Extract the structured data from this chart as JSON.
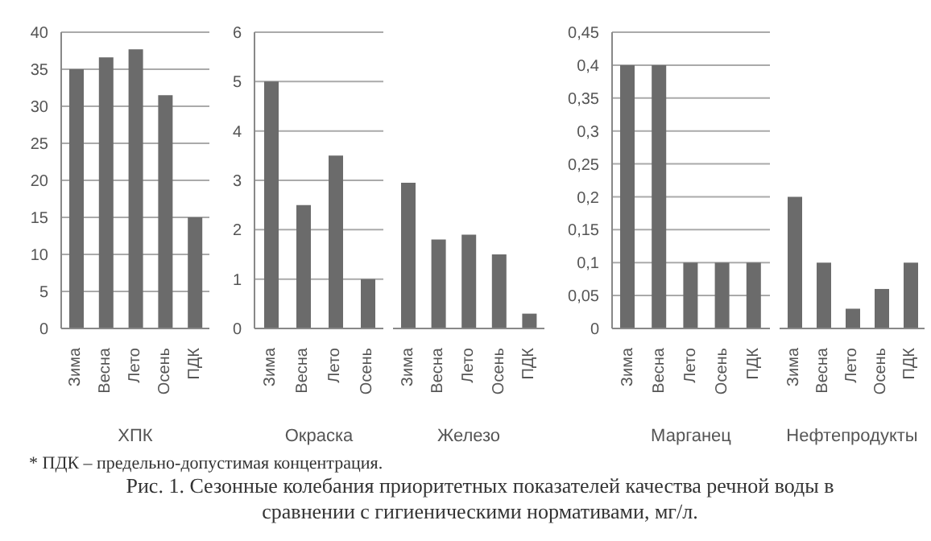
{
  "chart_data": [
    {
      "type": "bar",
      "title": "Рис. 1. Сезонные колебания приоритетных показателей качества речной воды в сравнении с гигиеническими нормативами, мг/л.",
      "annotations": [
        "* ПДК – предельно-допустимая концентрация."
      ],
      "xlabel": "ХПК",
      "categories": [
        "Зима",
        "Весна",
        "Лето",
        "Осень",
        "ПДК"
      ],
      "values": [
        35,
        36.6,
        37.7,
        31.5,
        15
      ],
      "color": "#6b6b6b",
      "ylim": [
        0,
        40
      ],
      "yticks": [
        0,
        5,
        10,
        15,
        20,
        25,
        30,
        35,
        40
      ],
      "grid": "y",
      "legend": false
    },
    {
      "type": "bar",
      "xlabel": "Окраска",
      "categories": [
        "Зима",
        "Весна",
        "Лето",
        "Осень"
      ],
      "values": [
        5,
        2.5,
        3.5,
        1
      ],
      "color": "#6b6b6b",
      "ylim": [
        0,
        6
      ],
      "yticks": [
        0,
        1,
        2,
        3,
        4,
        5,
        6
      ],
      "grid": "y",
      "legend": false
    },
    {
      "type": "bar",
      "xlabel": "Железо",
      "categories": [
        "Зима",
        "Весна",
        "Лето",
        "Осень",
        "ПДК"
      ],
      "values": [
        2.95,
        1.8,
        1.9,
        1.5,
        0.3
      ],
      "color": "#6b6b6b",
      "ylim": [
        0,
        6
      ],
      "yticks": [
        0,
        1,
        2,
        3,
        4,
        5,
        6
      ],
      "grid": "y",
      "legend": false,
      "tick_labels": "x"
    },
    {
      "type": "bar",
      "xlabel": "Марганец",
      "categories": [
        "Зима",
        "Весна",
        "Лето",
        "Осень",
        "ПДК"
      ],
      "values": [
        0.4,
        0.4,
        0.1,
        0.1,
        0.1
      ],
      "color": "#6b6b6b",
      "ylim": [
        0,
        0.45
      ],
      "yticks": [
        0,
        {
          "value": 0.05,
          "label": "0,05"
        },
        {
          "value": 0.1,
          "label": "0,1"
        },
        {
          "value": 0.15,
          "label": "0,15"
        },
        {
          "value": 0.2,
          "label": "0,2"
        },
        {
          "value": 0.25,
          "label": "0,25"
        },
        {
          "value": 0.3,
          "label": "0,3"
        },
        {
          "value": 0.35,
          "label": "0,35"
        },
        {
          "value": 0.4,
          "label": "0,4"
        },
        {
          "value": 0.45,
          "label": "0,45"
        }
      ],
      "grid": "y",
      "legend": false
    },
    {
      "type": "bar",
      "xlabel": "Нефтепродукты",
      "categories": [
        "Зима",
        "Весна",
        "Лето",
        "Осень",
        "ПДК"
      ],
      "values": [
        0.2,
        0.1,
        0.03,
        0.06,
        0.1
      ],
      "color": "#6b6b6b",
      "ylim": [
        0,
        0.45
      ],
      "yticks": [
        0,
        0.05,
        0.1,
        0.15,
        0.2,
        0.25,
        0.3,
        0.35,
        0.4,
        0.45
      ],
      "grid": "y",
      "legend": false,
      "tick_labels": "x"
    }
  ]
}
